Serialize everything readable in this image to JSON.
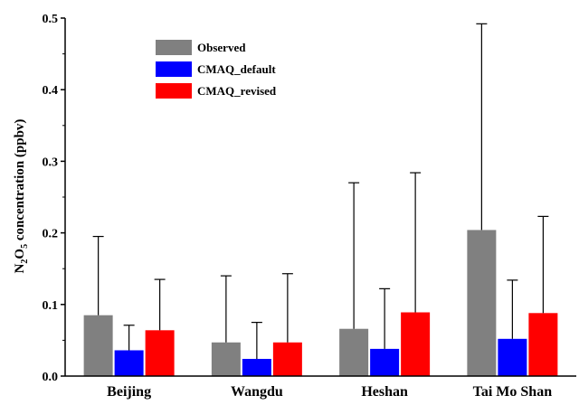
{
  "chart_data": {
    "type": "bar",
    "categories": [
      "Beijing",
      "Wangdu",
      "Heshan",
      "Tai Mo Shan"
    ],
    "series": [
      {
        "name": "Observed",
        "color": "#808080",
        "values": [
          0.085,
          0.047,
          0.066,
          0.204
        ],
        "error_upper": [
          0.195,
          0.14,
          0.27,
          0.492
        ]
      },
      {
        "name": "CMAQ_default",
        "color": "#0000ff",
        "values": [
          0.036,
          0.024,
          0.038,
          0.052
        ],
        "error_upper": [
          0.071,
          0.075,
          0.122,
          0.134
        ]
      },
      {
        "name": "CMAQ_revised",
        "color": "#ff0000",
        "values": [
          0.064,
          0.047,
          0.089,
          0.088
        ],
        "error_upper": [
          0.135,
          0.143,
          0.284,
          0.223
        ]
      }
    ],
    "ylabel_parts": {
      "n": "N",
      "sub1": "2",
      "o": "O",
      "sub2": "5",
      "rest": " concentration (ppbv)"
    },
    "ylim": [
      0,
      0.5
    ],
    "yticks": [
      "0.0",
      "0.1",
      "0.2",
      "0.3",
      "0.4",
      "0.5"
    ],
    "legend_position": "top-left",
    "grid": false
  }
}
